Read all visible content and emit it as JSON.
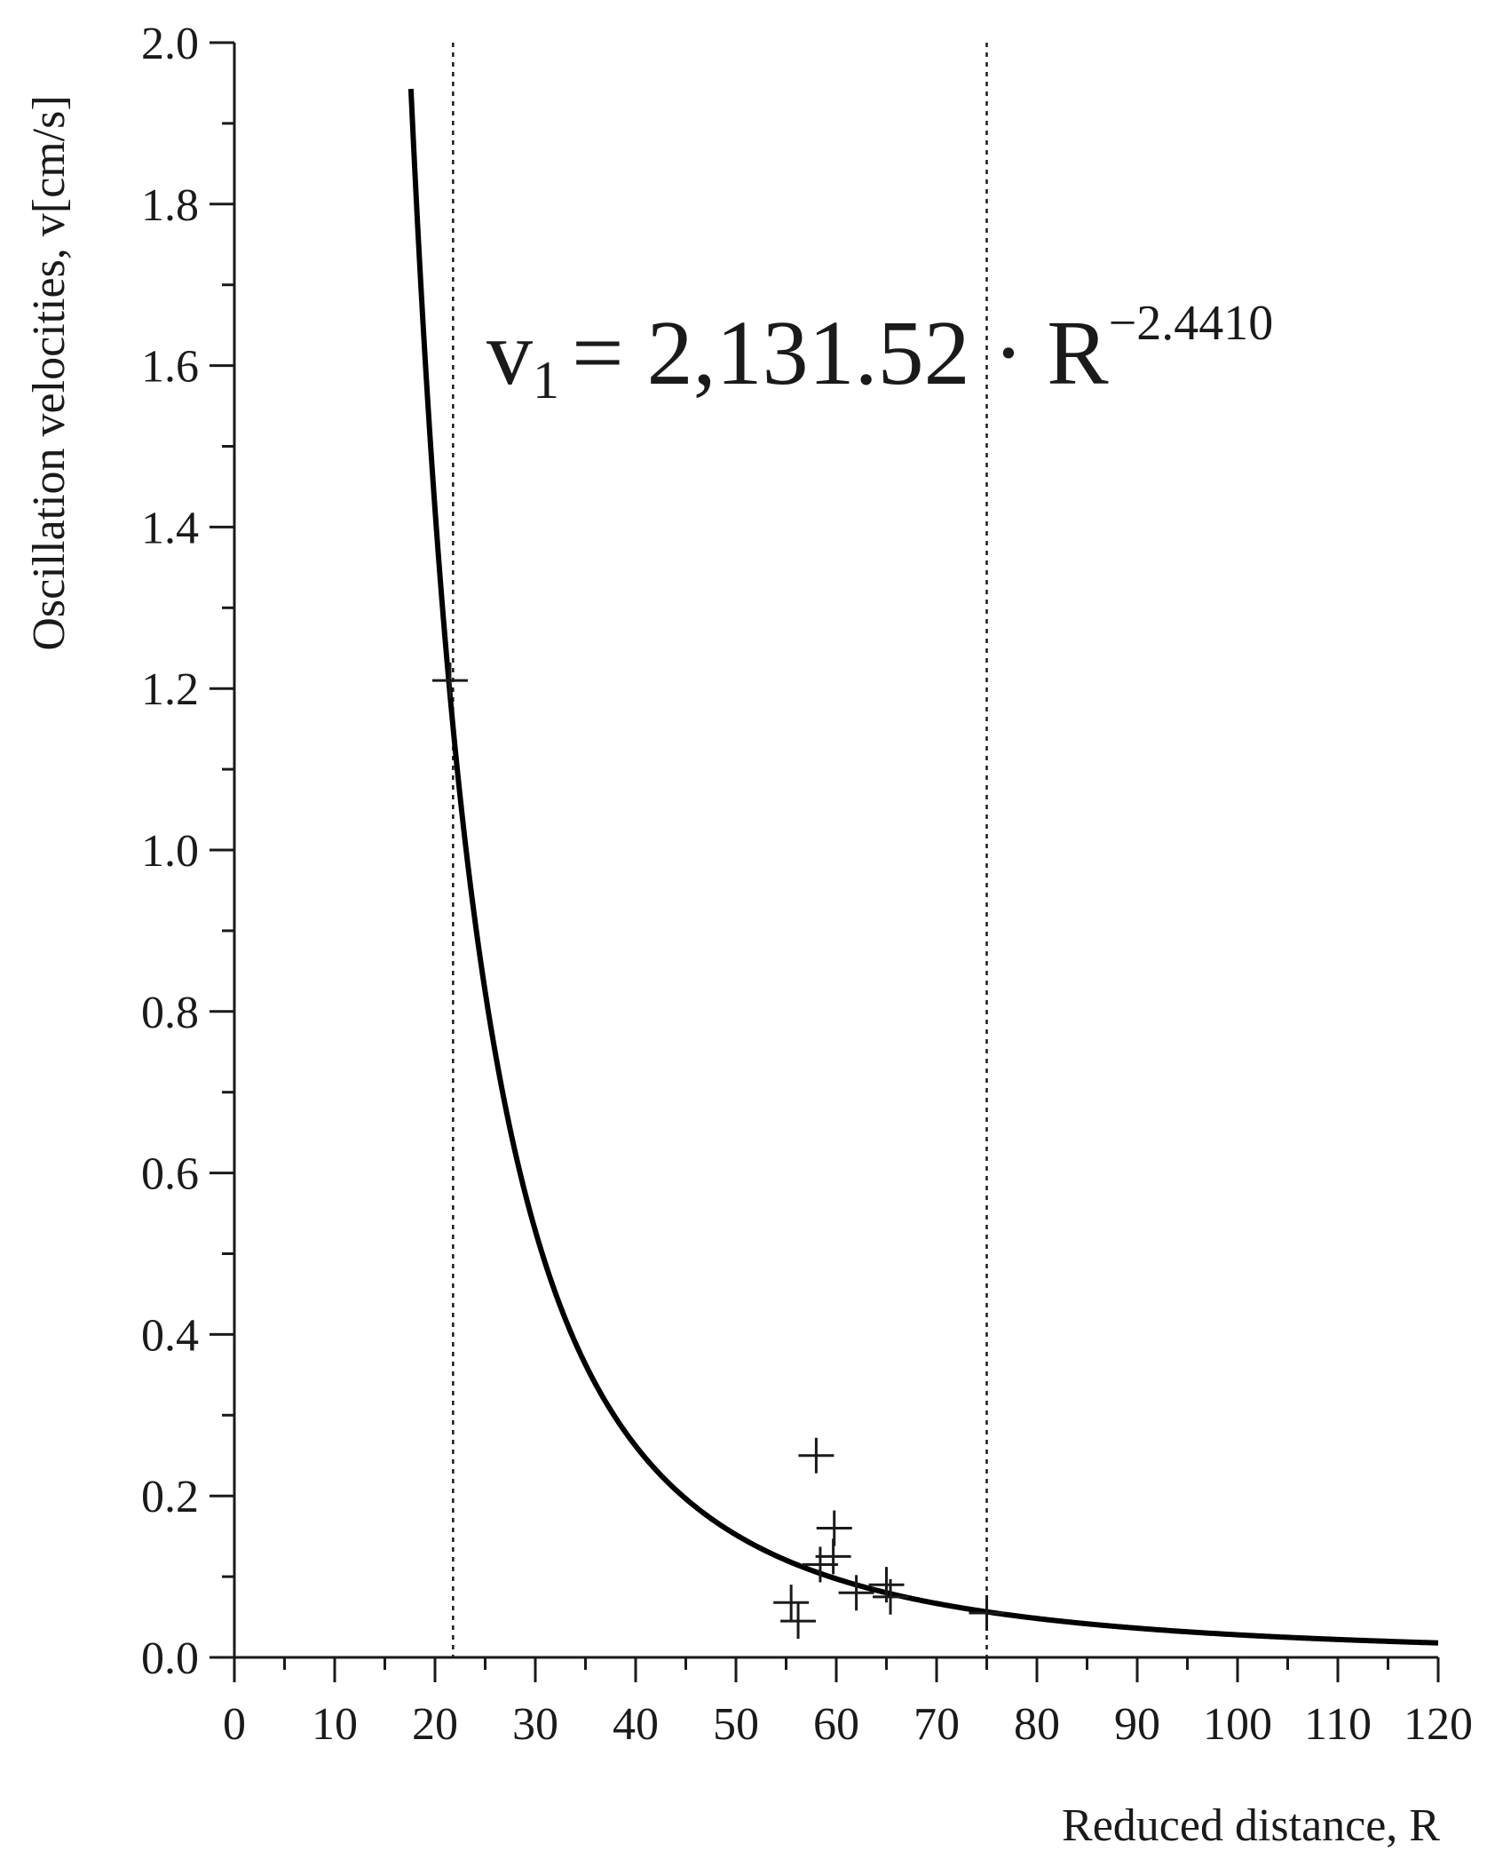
{
  "chart_data": {
    "type": "scatter",
    "xlabel": "Reduced distance, R",
    "ylabel": "Oscillation velocities, v[cm/s]",
    "xlim": [
      0,
      120
    ],
    "ylim": [
      0,
      2.0
    ],
    "x_ticks": [
      0,
      10,
      20,
      30,
      40,
      50,
      60,
      70,
      80,
      90,
      100,
      110,
      120
    ],
    "x_tick_labels": [
      "0",
      "10",
      "20",
      "30",
      "40",
      "50",
      "60",
      "70",
      "80",
      "90",
      "100",
      "110",
      "120"
    ],
    "y_ticks": [
      0,
      0.2,
      0.4,
      0.6,
      0.8,
      1.0,
      1.2,
      1.4,
      1.6,
      1.8,
      2.0
    ],
    "y_tick_labels": [
      "0.0",
      "0.2",
      "0.4",
      "0.6",
      "0.8",
      "1.0",
      "1.2",
      "1.4",
      "1.6",
      "1.8",
      "2.0"
    ],
    "grid": false,
    "fit_curve": {
      "coefficient": 2131.52,
      "exponent": -2.441,
      "x_range": [
        17.6,
        120
      ]
    },
    "equation": {
      "var": "v",
      "sub": "1",
      "rhs": "= 2,131.52 · R",
      "sup": "−2.4410"
    },
    "vertical_lines": [
      21.8,
      75
    ],
    "points": [
      {
        "x": 21.5,
        "y": 1.21
      },
      {
        "x": 58.0,
        "y": 0.25
      },
      {
        "x": 59.8,
        "y": 0.16
      },
      {
        "x": 58.4,
        "y": 0.115
      },
      {
        "x": 59.7,
        "y": 0.125
      },
      {
        "x": 62.0,
        "y": 0.08
      },
      {
        "x": 55.5,
        "y": 0.068
      },
      {
        "x": 56.2,
        "y": 0.045
      },
      {
        "x": 65.0,
        "y": 0.09
      },
      {
        "x": 65.4,
        "y": 0.075
      },
      {
        "x": 75.0,
        "y": 0.055
      }
    ]
  }
}
